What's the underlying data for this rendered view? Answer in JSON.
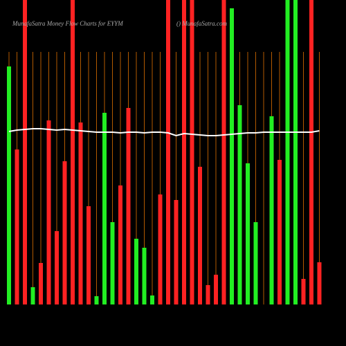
{
  "chart_data": {
    "type": "bar",
    "title": "MunafaSatra  Money Flow  Charts for EYYM",
    "subtitle": "() MunafaSatra.com",
    "values": [
      344,
      224,
      440,
      25,
      60,
      266,
      106,
      207,
      440,
      263,
      142,
      12,
      277,
      119,
      172,
      284,
      95,
      82,
      13,
      159,
      440,
      151,
      440,
      440,
      199,
      28,
      43,
      440,
      428,
      288,
      204,
      119,
      0,
      272,
      209,
      440,
      440,
      37,
      440,
      61
    ],
    "colors": [
      "#22ee22",
      "#ff2222",
      "#ff2222",
      "#22ee22",
      "#ff2222",
      "#ff2222",
      "#ff2222",
      "#ff2222",
      "#ff2222",
      "#ff2222",
      "#ff2222",
      "#22ee22",
      "#22ee22",
      "#22ee22",
      "#ff2222",
      "#ff2222",
      "#22ee22",
      "#22ee22",
      "#22ee22",
      "#ff2222",
      "#ff2222",
      "#ff2222",
      "#ff2222",
      "#ff2222",
      "#ff2222",
      "#ff2222",
      "#ff2222",
      "#ff2222",
      "#22ee22",
      "#22ee22",
      "#22ee22",
      "#22ee22",
      "#ff2222",
      "#22ee22",
      "#ff2222",
      "#22ee22",
      "#22ee22",
      "#ff2222",
      "#ff2222",
      "#ff2222"
    ],
    "line": {
      "color": "#ffffff",
      "values": [
        250,
        252,
        253,
        254,
        254,
        253,
        252,
        253,
        252,
        251,
        250,
        249,
        249,
        249,
        248,
        249,
        249,
        248,
        249,
        249,
        248,
        244,
        247,
        246,
        245,
        244,
        244,
        245,
        246,
        247,
        248,
        248,
        249,
        249,
        249,
        249,
        249,
        249,
        249,
        251
      ]
    },
    "grid_color": "#b35a00",
    "ylim": [
      0,
      440
    ]
  }
}
